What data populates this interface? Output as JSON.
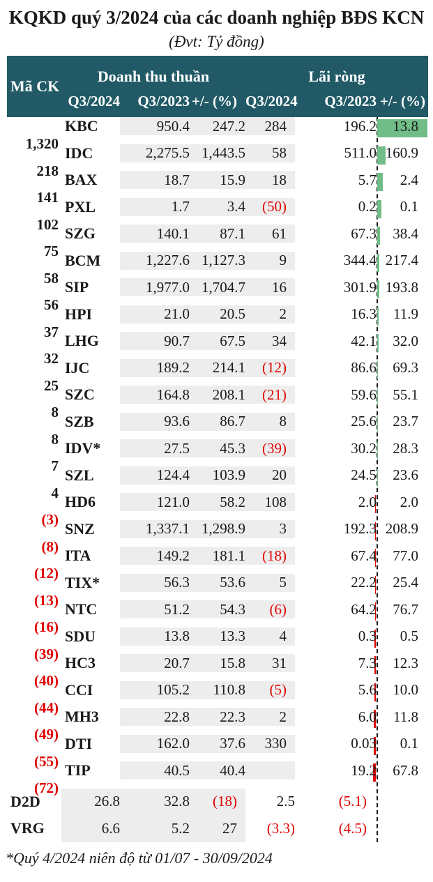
{
  "title": "KQKD quý 3/2024 của các doanh nghiệp BĐS KCN",
  "subtitle": "(Đvt: Tỷ đồng)",
  "footnote": "*Quý 4/2024 niên độ từ 01/07 - 30/09/2024",
  "colors": {
    "header_teal": "#215A66",
    "positive_bar_green": "#70BD88",
    "negative_red": "#E10000",
    "revenue_band_gray": "#EDEDED",
    "text": "#1A1A1A"
  },
  "header": {
    "ticker": "Mã CK",
    "revenue_group": "Doanh thu thuần",
    "profit_group": "Lãi ròng",
    "subs": [
      "Q3/2024",
      "Q3/2023",
      "+/- (%)",
      "Q3/2024",
      "Q3/2023",
      "+/- (%)"
    ]
  },
  "chart_data": {
    "type": "table",
    "title": "KQKD quý 3/2024 của các doanh nghiệp BĐS KCN",
    "unit": "Tỷ đồng",
    "column_groups": [
      "Doanh thu thuần",
      "Lãi ròng"
    ],
    "columns": [
      "Mã CK",
      "Doanh thu thuần Q3/2024",
      "Doanh thu thuần Q3/2023",
      "Doanh thu thuần +/- (%)",
      "Lãi ròng Q3/2024",
      "Lãi ròng Q3/2023",
      "Lãi ròng +/- (%)"
    ],
    "bar_axis": {
      "column": "Lãi ròng +/- (%)",
      "max": 1320,
      "positive_color": "#70BD88",
      "negative_color": "#E10000"
    },
    "rows": [
      {
        "ticker": "KBC",
        "rev_q3_2024": "950.4",
        "rev_q3_2023": "247.2",
        "rev_change": "284",
        "net_q3_2024": "196.2",
        "net_q3_2023": "13.8",
        "net_change": "1,320",
        "net_change_value": 1320
      },
      {
        "ticker": "IDC",
        "rev_q3_2024": "2,275.5",
        "rev_q3_2023": "1,443.5",
        "rev_change": "58",
        "net_q3_2024": "511.0",
        "net_q3_2023": "160.9",
        "net_change": "218",
        "net_change_value": 218
      },
      {
        "ticker": "BAX",
        "rev_q3_2024": "18.7",
        "rev_q3_2023": "15.9",
        "rev_change": "18",
        "net_q3_2024": "5.7",
        "net_q3_2023": "2.4",
        "net_change": "141",
        "net_change_value": 141
      },
      {
        "ticker": "PXL",
        "rev_q3_2024": "1.7",
        "rev_q3_2023": "3.4",
        "rev_change": "(50)",
        "net_q3_2024": "0.2",
        "net_q3_2023": "0.1",
        "net_change": "102",
        "net_change_value": 102
      },
      {
        "ticker": "SZG",
        "rev_q3_2024": "140.1",
        "rev_q3_2023": "87.1",
        "rev_change": "61",
        "net_q3_2024": "67.3",
        "net_q3_2023": "38.4",
        "net_change": "75",
        "net_change_value": 75
      },
      {
        "ticker": "BCM",
        "rev_q3_2024": "1,227.6",
        "rev_q3_2023": "1,127.3",
        "rev_change": "9",
        "net_q3_2024": "344.4",
        "net_q3_2023": "217.4",
        "net_change": "58",
        "net_change_value": 58
      },
      {
        "ticker": "SIP",
        "rev_q3_2024": "1,977.0",
        "rev_q3_2023": "1,704.7",
        "rev_change": "16",
        "net_q3_2024": "301.9",
        "net_q3_2023": "193.8",
        "net_change": "56",
        "net_change_value": 56
      },
      {
        "ticker": "HPI",
        "rev_q3_2024": "21.0",
        "rev_q3_2023": "20.5",
        "rev_change": "2",
        "net_q3_2024": "16.3",
        "net_q3_2023": "11.9",
        "net_change": "37",
        "net_change_value": 37
      },
      {
        "ticker": "LHG",
        "rev_q3_2024": "90.7",
        "rev_q3_2023": "67.5",
        "rev_change": "34",
        "net_q3_2024": "42.1",
        "net_q3_2023": "32.0",
        "net_change": "32",
        "net_change_value": 32
      },
      {
        "ticker": "IJC",
        "rev_q3_2024": "189.2",
        "rev_q3_2023": "214.1",
        "rev_change": "(12)",
        "net_q3_2024": "86.6",
        "net_q3_2023": "69.3",
        "net_change": "25",
        "net_change_value": 25
      },
      {
        "ticker": "SZC",
        "rev_q3_2024": "164.8",
        "rev_q3_2023": "208.1",
        "rev_change": "(21)",
        "net_q3_2024": "59.6",
        "net_q3_2023": "55.1",
        "net_change": "8",
        "net_change_value": 8
      },
      {
        "ticker": "SZB",
        "rev_q3_2024": "93.6",
        "rev_q3_2023": "86.7",
        "rev_change": "8",
        "net_q3_2024": "25.6",
        "net_q3_2023": "23.7",
        "net_change": "8",
        "net_change_value": 8
      },
      {
        "ticker": "IDV*",
        "rev_q3_2024": "27.5",
        "rev_q3_2023": "45.3",
        "rev_change": "(39)",
        "net_q3_2024": "30.2",
        "net_q3_2023": "28.3",
        "net_change": "7",
        "net_change_value": 7
      },
      {
        "ticker": "SZL",
        "rev_q3_2024": "124.4",
        "rev_q3_2023": "103.9",
        "rev_change": "20",
        "net_q3_2024": "24.5",
        "net_q3_2023": "23.6",
        "net_change": "4",
        "net_change_value": 4
      },
      {
        "ticker": "HD6",
        "rev_q3_2024": "121.0",
        "rev_q3_2023": "58.2",
        "rev_change": "108",
        "net_q3_2024": "2.0",
        "net_q3_2023": "2.0",
        "net_change": "(3)",
        "net_change_value": -3
      },
      {
        "ticker": "SNZ",
        "rev_q3_2024": "1,337.1",
        "rev_q3_2023": "1,298.9",
        "rev_change": "3",
        "net_q3_2024": "192.3",
        "net_q3_2023": "208.9",
        "net_change": "(8)",
        "net_change_value": -8
      },
      {
        "ticker": "ITA",
        "rev_q3_2024": "149.2",
        "rev_q3_2023": "181.1",
        "rev_change": "(18)",
        "net_q3_2024": "67.4",
        "net_q3_2023": "77.0",
        "net_change": "(12)",
        "net_change_value": -12
      },
      {
        "ticker": "TIX*",
        "rev_q3_2024": "56.3",
        "rev_q3_2023": "53.6",
        "rev_change": "5",
        "net_q3_2024": "22.2",
        "net_q3_2023": "25.4",
        "net_change": "(13)",
        "net_change_value": -13
      },
      {
        "ticker": "NTC",
        "rev_q3_2024": "51.2",
        "rev_q3_2023": "54.3",
        "rev_change": "(6)",
        "net_q3_2024": "64.2",
        "net_q3_2023": "76.7",
        "net_change": "(16)",
        "net_change_value": -16
      },
      {
        "ticker": "SDU",
        "rev_q3_2024": "13.8",
        "rev_q3_2023": "13.3",
        "rev_change": "4",
        "net_q3_2024": "0.3",
        "net_q3_2023": "0.5",
        "net_change": "(39)",
        "net_change_value": -39
      },
      {
        "ticker": "HC3",
        "rev_q3_2024": "20.7",
        "rev_q3_2023": "15.8",
        "rev_change": "31",
        "net_q3_2024": "7.3",
        "net_q3_2023": "12.3",
        "net_change": "(40)",
        "net_change_value": -40
      },
      {
        "ticker": "CCI",
        "rev_q3_2024": "105.2",
        "rev_q3_2023": "110.8",
        "rev_change": "(5)",
        "net_q3_2024": "5.6",
        "net_q3_2023": "10.0",
        "net_change": "(44)",
        "net_change_value": -44
      },
      {
        "ticker": "MH3",
        "rev_q3_2024": "22.8",
        "rev_q3_2023": "22.3",
        "rev_change": "2",
        "net_q3_2024": "6.0",
        "net_q3_2023": "11.8",
        "net_change": "(49)",
        "net_change_value": -49
      },
      {
        "ticker": "DTI",
        "rev_q3_2024": "162.0",
        "rev_q3_2023": "37.6",
        "rev_change": "330",
        "net_q3_2024": "0.03",
        "net_q3_2023": "0.1",
        "net_change": "(55)",
        "net_change_value": -55
      },
      {
        "ticker": "TIP",
        "rev_q3_2024": "40.5",
        "rev_q3_2023": "40.4",
        "rev_change": "",
        "net_q3_2024": "19.2",
        "net_q3_2023": "67.8",
        "net_change": "(72)",
        "net_change_value": -72
      },
      {
        "ticker": "D2D",
        "rev_q3_2024": "26.8",
        "rev_q3_2023": "32.8",
        "rev_change": "(18)",
        "net_q3_2024": "2.5",
        "net_q3_2023": "(5.1)",
        "net_change": "",
        "net_change_value": null
      },
      {
        "ticker": "VRG",
        "rev_q3_2024": "6.6",
        "rev_q3_2023": "5.2",
        "rev_change": "27",
        "net_q3_2024": "(3.3)",
        "net_q3_2023": "(4.5)",
        "net_change": "",
        "net_change_value": null
      }
    ]
  }
}
